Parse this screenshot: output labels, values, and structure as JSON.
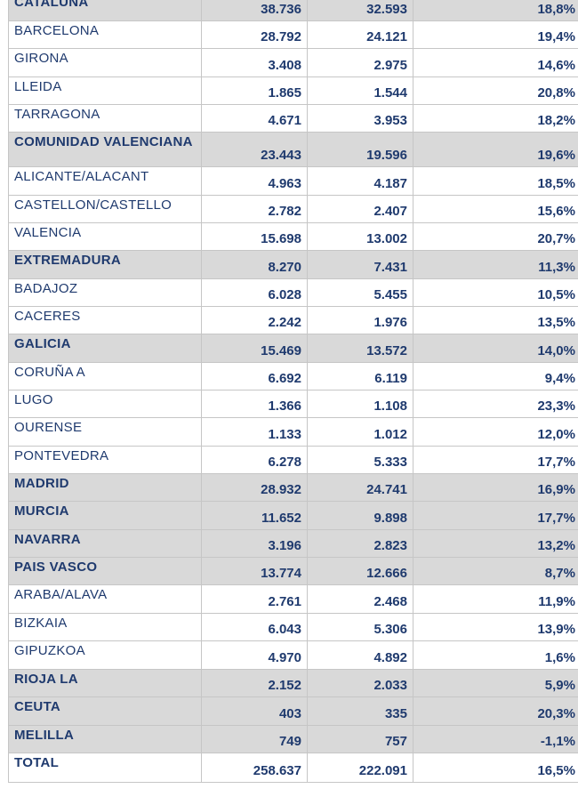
{
  "rows": [
    {
      "kind": "region",
      "name": "CATALUÑA",
      "a": "38.736",
      "b": "32.593",
      "pct": "18,8%"
    },
    {
      "kind": "province",
      "name": "BARCELONA",
      "a": "28.792",
      "b": "24.121",
      "pct": "19,4%"
    },
    {
      "kind": "province",
      "name": "GIRONA",
      "a": "3.408",
      "b": "2.975",
      "pct": "14,6%"
    },
    {
      "kind": "province",
      "name": "LLEIDA",
      "a": "1.865",
      "b": "1.544",
      "pct": "20,8%"
    },
    {
      "kind": "province",
      "name": "TARRAGONA",
      "a": "4.671",
      "b": "3.953",
      "pct": "18,2%"
    },
    {
      "kind": "region",
      "name": "COMUNIDAD VALENCIANA",
      "a": "23.443",
      "b": "19.596",
      "pct": "19,6%"
    },
    {
      "kind": "province",
      "name": "ALICANTE/ALACANT",
      "a": "4.963",
      "b": "4.187",
      "pct": "18,5%"
    },
    {
      "kind": "province",
      "name": "CASTELLON/CASTELLO",
      "a": "2.782",
      "b": "2.407",
      "pct": "15,6%"
    },
    {
      "kind": "province",
      "name": "VALENCIA",
      "a": "15.698",
      "b": "13.002",
      "pct": "20,7%"
    },
    {
      "kind": "region",
      "name": "EXTREMADURA",
      "a": "8.270",
      "b": "7.431",
      "pct": "11,3%"
    },
    {
      "kind": "province",
      "name": "BADAJOZ",
      "a": "6.028",
      "b": "5.455",
      "pct": "10,5%"
    },
    {
      "kind": "province",
      "name": "CACERES",
      "a": "2.242",
      "b": "1.976",
      "pct": "13,5%"
    },
    {
      "kind": "region",
      "name": "GALICIA",
      "a": "15.469",
      "b": "13.572",
      "pct": "14,0%"
    },
    {
      "kind": "province",
      "name": "CORUÑA A",
      "a": "6.692",
      "b": "6.119",
      "pct": "9,4%"
    },
    {
      "kind": "province",
      "name": "LUGO",
      "a": "1.366",
      "b": "1.108",
      "pct": "23,3%"
    },
    {
      "kind": "province",
      "name": "OURENSE",
      "a": "1.133",
      "b": "1.012",
      "pct": "12,0%"
    },
    {
      "kind": "province",
      "name": "PONTEVEDRA",
      "a": "6.278",
      "b": "5.333",
      "pct": "17,7%"
    },
    {
      "kind": "region",
      "name": "MADRID",
      "a": "28.932",
      "b": "24.741",
      "pct": "16,9%"
    },
    {
      "kind": "region",
      "name": "MURCIA",
      "a": "11.652",
      "b": "9.898",
      "pct": "17,7%"
    },
    {
      "kind": "region",
      "name": "NAVARRA",
      "a": "3.196",
      "b": "2.823",
      "pct": "13,2%"
    },
    {
      "kind": "region",
      "name": "PAIS VASCO",
      "a": "13.774",
      "b": "12.666",
      "pct": "8,7%"
    },
    {
      "kind": "province",
      "name": "ARABA/ALAVA",
      "a": "2.761",
      "b": "2.468",
      "pct": "11,9%"
    },
    {
      "kind": "province",
      "name": "BIZKAIA",
      "a": "6.043",
      "b": "5.306",
      "pct": "13,9%"
    },
    {
      "kind": "province",
      "name": "GIPUZKOA",
      "a": "4.970",
      "b": "4.892",
      "pct": "1,6%"
    },
    {
      "kind": "region",
      "name": "RIOJA LA",
      "a": "2.152",
      "b": "2.033",
      "pct": "5,9%"
    },
    {
      "kind": "region",
      "name": "CEUTA",
      "a": "403",
      "b": "335",
      "pct": "20,3%"
    },
    {
      "kind": "region",
      "name": "MELILLA",
      "a": "749",
      "b": "757",
      "pct": "-1,1%"
    },
    {
      "kind": "total",
      "name": "TOTAL",
      "a": "258.637",
      "b": "222.091",
      "pct": "16,5%"
    }
  ]
}
